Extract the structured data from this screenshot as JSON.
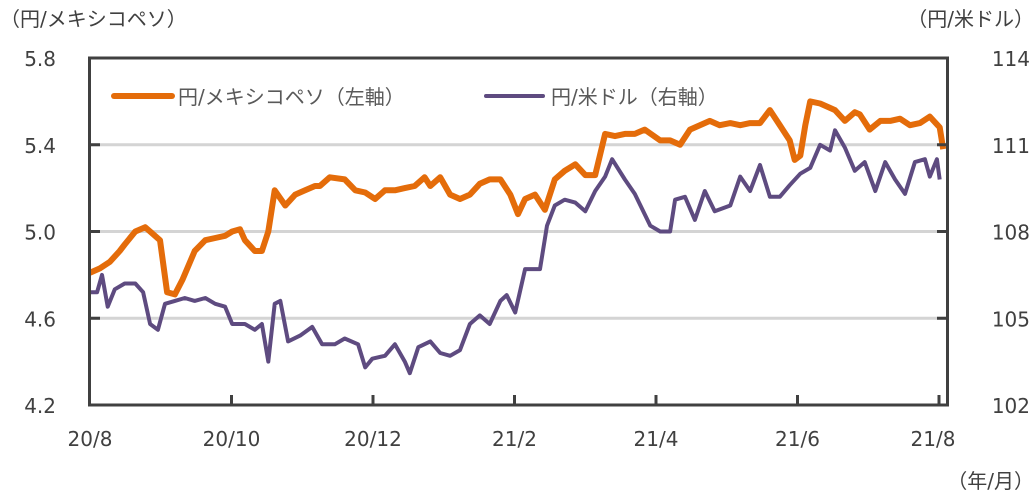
{
  "chart_data": {
    "type": "line",
    "title": "",
    "left_axis_label": "（円/メキシコペソ）",
    "right_axis_label": "（円/米ドル）",
    "x_unit_label": "（年/月）",
    "xlabel": "",
    "x_note": "x values are months elapsed since 20/8",
    "x_ticks": [
      "20/8",
      "20/10",
      "20/12",
      "21/2",
      "21/4",
      "21/6",
      "21/8"
    ],
    "xlim": [
      0,
      12
    ],
    "left_ylim": [
      4.2,
      5.8
    ],
    "left_ticks": [
      "4.2",
      "4.6",
      "5.0",
      "5.4",
      "5.8"
    ],
    "right_ylim": [
      102,
      114
    ],
    "right_ticks": [
      "102",
      "105",
      "108",
      "111",
      "114"
    ],
    "grid": true,
    "legend_position": "top-left",
    "colors": {
      "mxn": "#E46C0A",
      "usd": "#5E4B80",
      "grid": "#D4D4D4",
      "frame": "#404040"
    },
    "series": [
      {
        "name": "円/メキシコペソ（左軸）",
        "axis": "left",
        "points": [
          [
            0,
            4.81
          ],
          [
            0.14,
            4.83
          ],
          [
            0.28,
            4.86
          ],
          [
            0.42,
            4.91
          ],
          [
            0.49,
            4.94
          ],
          [
            0.64,
            5.0
          ],
          [
            0.78,
            5.02
          ],
          [
            0.85,
            5.0
          ],
          [
            0.99,
            4.96
          ],
          [
            1.09,
            4.72
          ],
          [
            1.2,
            4.71
          ],
          [
            1.31,
            4.78
          ],
          [
            1.48,
            4.91
          ],
          [
            1.63,
            4.96
          ],
          [
            1.77,
            4.97
          ],
          [
            1.91,
            4.98
          ],
          [
            2.01,
            5.0
          ],
          [
            2.12,
            5.01
          ],
          [
            2.19,
            4.96
          ],
          [
            2.33,
            4.91
          ],
          [
            2.43,
            4.91
          ],
          [
            2.52,
            5.0
          ],
          [
            2.61,
            5.19
          ],
          [
            2.76,
            5.12
          ],
          [
            2.9,
            5.17
          ],
          [
            3.04,
            5.19
          ],
          [
            3.18,
            5.21
          ],
          [
            3.25,
            5.21
          ],
          [
            3.39,
            5.25
          ],
          [
            3.6,
            5.24
          ],
          [
            3.75,
            5.19
          ],
          [
            3.89,
            5.18
          ],
          [
            4.03,
            5.15
          ],
          [
            4.17,
            5.19
          ],
          [
            4.31,
            5.19
          ],
          [
            4.45,
            5.2
          ],
          [
            4.59,
            5.21
          ],
          [
            4.73,
            5.25
          ],
          [
            4.81,
            5.21
          ],
          [
            4.95,
            5.25
          ],
          [
            5.09,
            5.17
          ],
          [
            5.23,
            5.15
          ],
          [
            5.37,
            5.17
          ],
          [
            5.51,
            5.22
          ],
          [
            5.65,
            5.24
          ],
          [
            5.8,
            5.24
          ],
          [
            5.94,
            5.17
          ],
          [
            6.05,
            5.08
          ],
          [
            6.15,
            5.15
          ],
          [
            6.29,
            5.17
          ],
          [
            6.43,
            5.1
          ],
          [
            6.57,
            5.24
          ],
          [
            6.71,
            5.28
          ],
          [
            6.86,
            5.31
          ],
          [
            7.0,
            5.26
          ],
          [
            7.14,
            5.26
          ],
          [
            7.28,
            5.45
          ],
          [
            7.42,
            5.44
          ],
          [
            7.56,
            5.45
          ],
          [
            7.7,
            5.45
          ],
          [
            7.84,
            5.47
          ],
          [
            8.06,
            5.42
          ],
          [
            8.2,
            5.42
          ],
          [
            8.34,
            5.4
          ],
          [
            8.48,
            5.47
          ],
          [
            8.62,
            5.49
          ],
          [
            8.76,
            5.51
          ],
          [
            8.9,
            5.49
          ],
          [
            9.05,
            5.5
          ],
          [
            9.19,
            5.49
          ],
          [
            9.33,
            5.5
          ],
          [
            9.47,
            5.5
          ],
          [
            9.61,
            5.56
          ],
          [
            9.75,
            5.49
          ],
          [
            9.89,
            5.42
          ],
          [
            9.96,
            5.33
          ],
          [
            10.04,
            5.35
          ],
          [
            10.11,
            5.49
          ],
          [
            10.18,
            5.6
          ],
          [
            10.32,
            5.59
          ],
          [
            10.46,
            5.57
          ],
          [
            10.53,
            5.56
          ],
          [
            10.67,
            5.51
          ],
          [
            10.81,
            5.55
          ],
          [
            10.88,
            5.54
          ],
          [
            11.02,
            5.47
          ],
          [
            11.17,
            5.51
          ],
          [
            11.31,
            5.51
          ],
          [
            11.45,
            5.52
          ],
          [
            11.59,
            5.49
          ],
          [
            11.73,
            5.5
          ],
          [
            11.87,
            5.53
          ],
          [
            12.01,
            5.48
          ],
          [
            12.06,
            5.38
          ]
        ]
      },
      {
        "name": "円/米ドル（右軸）",
        "axis": "right",
        "points": [
          [
            0,
            105.9
          ],
          [
            0.1,
            105.9
          ],
          [
            0.17,
            106.5
          ],
          [
            0.25,
            105.4
          ],
          [
            0.35,
            106.0
          ],
          [
            0.49,
            106.2
          ],
          [
            0.64,
            106.2
          ],
          [
            0.75,
            105.9
          ],
          [
            0.85,
            104.8
          ],
          [
            0.96,
            104.6
          ],
          [
            1.06,
            105.5
          ],
          [
            1.2,
            105.6
          ],
          [
            1.34,
            105.7
          ],
          [
            1.48,
            105.6
          ],
          [
            1.63,
            105.7
          ],
          [
            1.77,
            105.5
          ],
          [
            1.91,
            105.4
          ],
          [
            2.01,
            104.8
          ],
          [
            2.19,
            104.8
          ],
          [
            2.33,
            104.6
          ],
          [
            2.43,
            104.8
          ],
          [
            2.52,
            103.5
          ],
          [
            2.61,
            105.5
          ],
          [
            2.69,
            105.6
          ],
          [
            2.8,
            104.2
          ],
          [
            2.97,
            104.4
          ],
          [
            3.14,
            104.7
          ],
          [
            3.28,
            104.1
          ],
          [
            3.46,
            104.1
          ],
          [
            3.6,
            104.3
          ],
          [
            3.79,
            104.1
          ],
          [
            3.89,
            103.3
          ],
          [
            3.99,
            103.6
          ],
          [
            4.17,
            103.7
          ],
          [
            4.31,
            104.1
          ],
          [
            4.45,
            103.5
          ],
          [
            4.52,
            103.1
          ],
          [
            4.64,
            104.0
          ],
          [
            4.81,
            104.2
          ],
          [
            4.95,
            103.8
          ],
          [
            5.09,
            103.7
          ],
          [
            5.23,
            103.9
          ],
          [
            5.37,
            104.8
          ],
          [
            5.51,
            105.1
          ],
          [
            5.65,
            104.8
          ],
          [
            5.8,
            105.6
          ],
          [
            5.89,
            105.8
          ],
          [
            6.01,
            105.2
          ],
          [
            6.15,
            106.7
          ],
          [
            6.36,
            106.7
          ],
          [
            6.46,
            108.2
          ],
          [
            6.57,
            108.9
          ],
          [
            6.71,
            109.1
          ],
          [
            6.86,
            109.0
          ],
          [
            7.0,
            108.7
          ],
          [
            7.14,
            109.4
          ],
          [
            7.28,
            109.9
          ],
          [
            7.38,
            110.5
          ],
          [
            7.56,
            109.8
          ],
          [
            7.7,
            109.3
          ],
          [
            7.92,
            108.2
          ],
          [
            8.06,
            108.0
          ],
          [
            8.2,
            108.0
          ],
          [
            8.27,
            109.1
          ],
          [
            8.41,
            109.2
          ],
          [
            8.55,
            108.4
          ],
          [
            8.69,
            109.4
          ],
          [
            8.83,
            108.7
          ],
          [
            9.05,
            108.9
          ],
          [
            9.19,
            109.9
          ],
          [
            9.33,
            109.4
          ],
          [
            9.47,
            110.3
          ],
          [
            9.61,
            109.2
          ],
          [
            9.75,
            109.2
          ],
          [
            9.89,
            109.6
          ],
          [
            10.04,
            110.0
          ],
          [
            10.18,
            110.2
          ],
          [
            10.32,
            111.0
          ],
          [
            10.46,
            110.8
          ],
          [
            10.53,
            111.5
          ],
          [
            10.67,
            110.9
          ],
          [
            10.81,
            110.1
          ],
          [
            10.95,
            110.4
          ],
          [
            11.1,
            109.4
          ],
          [
            11.24,
            110.4
          ],
          [
            11.38,
            109.8
          ],
          [
            11.52,
            109.3
          ],
          [
            11.66,
            110.4
          ],
          [
            11.8,
            110.5
          ],
          [
            11.87,
            109.9
          ],
          [
            11.97,
            110.5
          ],
          [
            12.01,
            109.8
          ]
        ]
      }
    ]
  }
}
